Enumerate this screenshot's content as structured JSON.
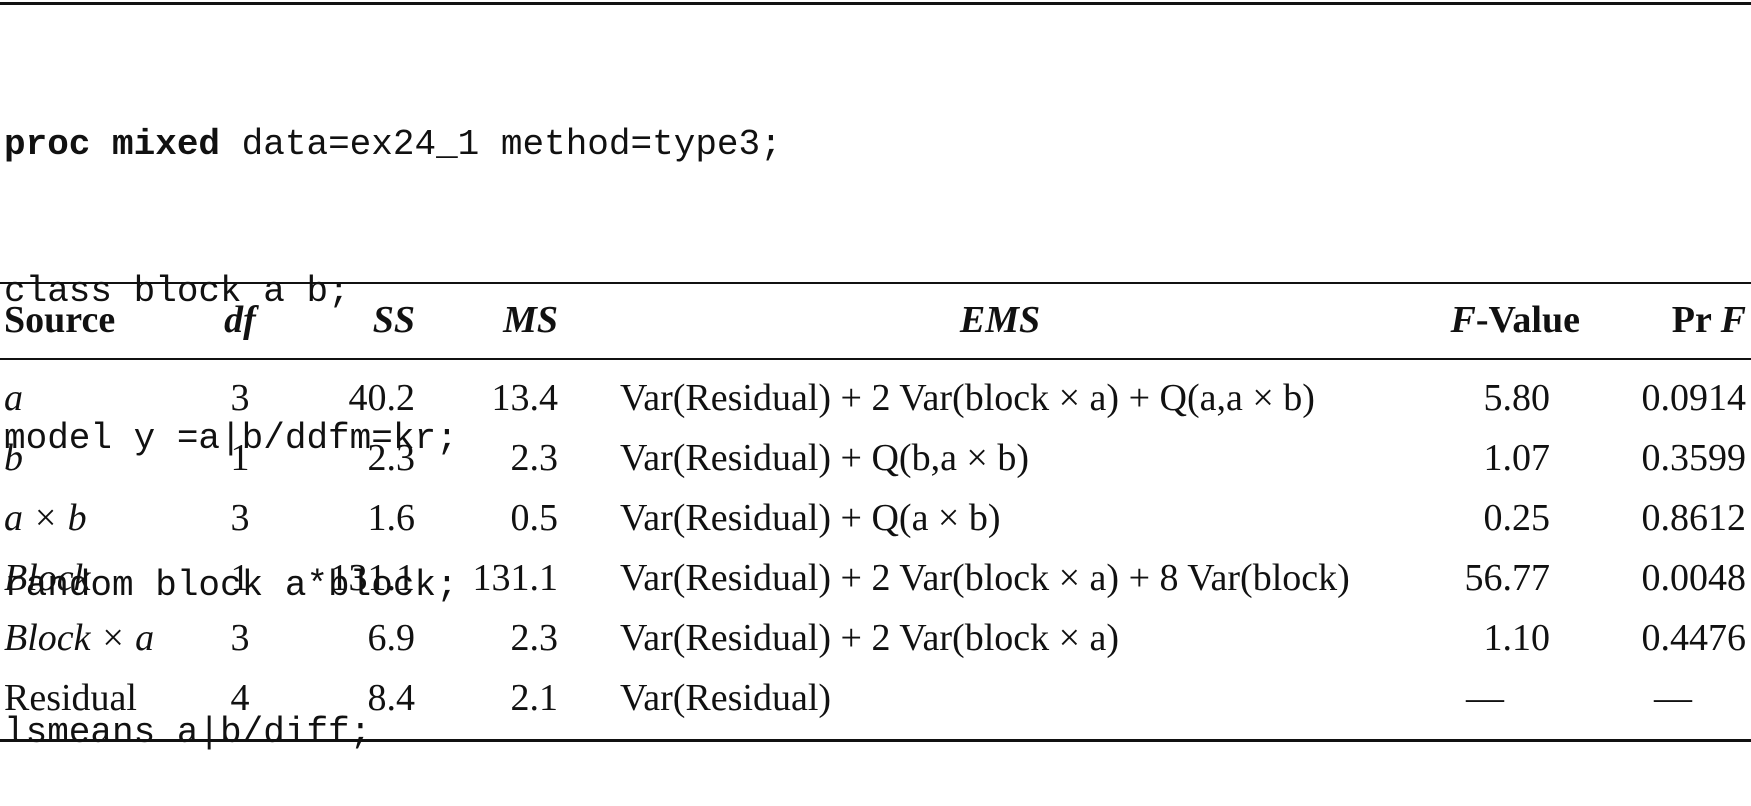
{
  "code": {
    "line1_keyword": "proc mixed",
    "line1_rest": " data=ex24_1 method=type3;",
    "line2": "class block a b;",
    "line3": "model y =a|b/ddfm=kr;",
    "line4": "random block a*block;",
    "line5": "lsmeans a|b/diff;"
  },
  "table": {
    "headers": {
      "source": "Source",
      "df": "df",
      "ss": "SS",
      "ms": "MS",
      "ems": "EMS",
      "f_italic": "F",
      "f_rest": "-Value",
      "p_rest": "Pr ",
      "p_italic": "F"
    },
    "rows": [
      {
        "source": "a",
        "df": "3",
        "ss": "40.2",
        "ms": "13.4",
        "ems": "Var(Residual) + 2 Var(block × a) + Q(a,a × b)",
        "f": "5.80",
        "p": "0.0914"
      },
      {
        "source": "b",
        "df": "1",
        "ss": "2.3",
        "ms": "2.3",
        "ems": "Var(Residual) + Q(b,a × b)",
        "f": "1.07",
        "p": "0.3599"
      },
      {
        "source": "a × b",
        "df": "3",
        "ss": "1.6",
        "ms": "0.5",
        "ems": "Var(Residual) + Q(a × b)",
        "f": "0.25",
        "p": "0.8612"
      },
      {
        "source": "Block",
        "df": "1",
        "ss": "131.1",
        "ms": "131.1",
        "ems": "Var(Residual) + 2 Var(block × a) + 8 Var(block)",
        "f": "56.77",
        "p": "0.0048"
      },
      {
        "source": "Block × a",
        "df": "3",
        "ss": "6.9",
        "ms": "2.3",
        "ems": "Var(Residual) + 2 Var(block × a)",
        "f": "1.10",
        "p": "0.4476"
      },
      {
        "source": "Residual",
        "df": "4",
        "ss": "8.4",
        "ms": "2.1",
        "ems": "Var(Residual)",
        "f": "—",
        "p": "—"
      }
    ]
  }
}
